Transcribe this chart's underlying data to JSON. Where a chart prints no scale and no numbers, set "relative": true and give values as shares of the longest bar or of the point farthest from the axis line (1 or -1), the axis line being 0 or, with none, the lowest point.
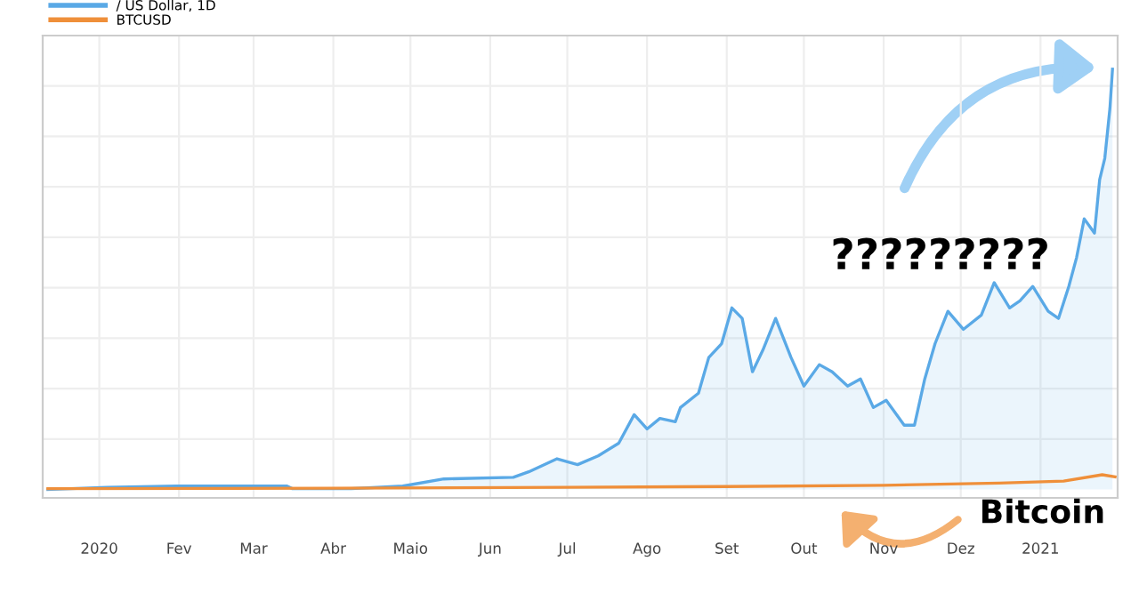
{
  "chart_data": {
    "type": "area",
    "relative": true,
    "annotations": [
      "?????????",
      "Bitcoin"
    ],
    "xticks": [
      {
        "value": "2020-01-01",
        "label": "2020"
      },
      {
        "value": "2020-02-01",
        "label": "Fev"
      },
      {
        "value": "2020-03-01",
        "label": "Mar"
      },
      {
        "value": "2020-04-01",
        "label": "Abr"
      },
      {
        "value": "2020-05-01",
        "label": "Maio"
      },
      {
        "value": "2020-06-01",
        "label": "Jun"
      },
      {
        "value": "2020-07-01",
        "label": "Jul"
      },
      {
        "value": "2020-08-01",
        "label": "Ago"
      },
      {
        "value": "2020-09-01",
        "label": "Set"
      },
      {
        "value": "2020-10-01",
        "label": "Out"
      },
      {
        "value": "2020-11-01",
        "label": "Nov"
      },
      {
        "value": "2020-12-01",
        "label": "Dez"
      },
      {
        "value": "2021-01-01",
        "label": "2021"
      }
    ],
    "xlim": [
      "2019-12-10",
      "2021-01-31"
    ],
    "tick_labels": "x",
    "grid": true,
    "legend": "top left",
    "series": [
      {
        "name": "/ US Dollar, 1D",
        "color": "#5aa9e6",
        "x": [
          "2019-12-12",
          "2020-01-04",
          "2020-01-31",
          "2020-02-27",
          "2020-03-14",
          "2020-03-16",
          "2020-04-08",
          "2020-04-28",
          "2020-05-14",
          "2020-06-10",
          "2020-06-16",
          "2020-06-27",
          "2020-07-05",
          "2020-07-13",
          "2020-07-21",
          "2020-07-27",
          "2020-08-01",
          "2020-08-06",
          "2020-08-12",
          "2020-08-14",
          "2020-08-21",
          "2020-08-25",
          "2020-08-30",
          "2020-09-03",
          "2020-09-07",
          "2020-09-11",
          "2020-09-15",
          "2020-09-20",
          "2020-09-26",
          "2020-10-01",
          "2020-10-07",
          "2020-10-12",
          "2020-10-18",
          "2020-10-23",
          "2020-10-28",
          "2020-11-02",
          "2020-11-09",
          "2020-11-13",
          "2020-11-17",
          "2020-11-21",
          "2020-11-26",
          "2020-12-02",
          "2020-12-09",
          "2020-12-14",
          "2020-12-20",
          "2020-12-24",
          "2020-12-29",
          "2021-01-04",
          "2021-01-08",
          "2021-01-12",
          "2021-01-15",
          "2021-01-18",
          "2021-01-22",
          "2021-01-24",
          "2021-01-26",
          "2021-01-28",
          "2021-01-29"
        ],
        "values": [
          0,
          0.005,
          0.008,
          0.008,
          0.008,
          0.002,
          0.002,
          0.008,
          0.025,
          0.029,
          0.042,
          0.073,
          0.059,
          0.08,
          0.11,
          0.178,
          0.144,
          0.169,
          0.161,
          0.195,
          0.229,
          0.314,
          0.347,
          0.432,
          0.407,
          0.28,
          0.331,
          0.407,
          0.314,
          0.246,
          0.297,
          0.28,
          0.246,
          0.263,
          0.195,
          0.212,
          0.153,
          0.153,
          0.263,
          0.347,
          0.424,
          0.381,
          0.415,
          0.492,
          0.432,
          0.449,
          0.483,
          0.424,
          0.407,
          0.483,
          0.551,
          0.644,
          0.61,
          0.737,
          0.788,
          0.907,
          1
        ]
      },
      {
        "name": "BTCUSD",
        "type": "line",
        "color": "#ef8f3a",
        "x": [
          "2019-12-12",
          "2020-04-01",
          "2020-07-01",
          "2020-09-01",
          "2020-11-01",
          "2020-12-16",
          "2021-01-10",
          "2021-01-25",
          "2021-01-30"
        ],
        "values": [
          0.002,
          0.003,
          0.005,
          0.007,
          0.01,
          0.015,
          0.02,
          0.035,
          0.03
        ]
      }
    ]
  }
}
